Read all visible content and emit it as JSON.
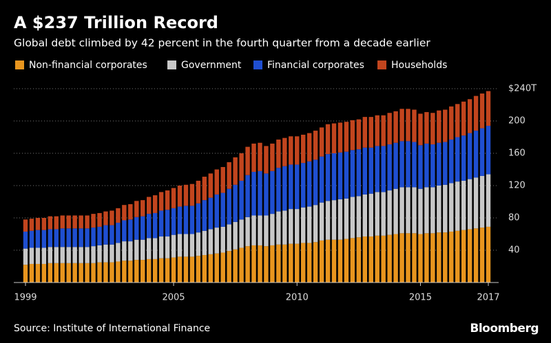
{
  "chart_data": {
    "type": "stacked-bar",
    "title": "A $237 Trillion Record",
    "subtitle": "Global debt climbed by 42 percent in the fourth quarter from a decade earlier",
    "source": "Source: Institute of International Finance",
    "brand": "Bloomberg",
    "categories": [
      "1999",
      null,
      null,
      null,
      null,
      null,
      null,
      null,
      null,
      null,
      null,
      null,
      null,
      null,
      null,
      null,
      null,
      null,
      null,
      null,
      null,
      null,
      null,
      null,
      "2005",
      null,
      null,
      null,
      null,
      null,
      null,
      null,
      null,
      null,
      null,
      null,
      null,
      null,
      null,
      null,
      null,
      null,
      null,
      null,
      "2010",
      null,
      null,
      null,
      null,
      null,
      null,
      null,
      null,
      null,
      null,
      null,
      null,
      null,
      null,
      null,
      null,
      null,
      null,
      null,
      "2015",
      null,
      null,
      null,
      null,
      null,
      null,
      null,
      null,
      null,
      null,
      "2017"
    ],
    "series": [
      {
        "name": "Non-financial corporates",
        "color": "#e8951e",
        "values": [
          22,
          23,
          23,
          23,
          24,
          24,
          24,
          24,
          24,
          24,
          24,
          24,
          25,
          25,
          25,
          26,
          27,
          27,
          28,
          28,
          29,
          29,
          30,
          30,
          31,
          32,
          32,
          32,
          33,
          34,
          35,
          36,
          37,
          39,
          41,
          43,
          45,
          46,
          46,
          45,
          46,
          47,
          47,
          48,
          48,
          49,
          49,
          50,
          52,
          53,
          53,
          53,
          54,
          55,
          56,
          57,
          57,
          58,
          58,
          59,
          60,
          61,
          61,
          61,
          60,
          61,
          61,
          62,
          62,
          63,
          64,
          65,
          66,
          67,
          68,
          69
        ]
      },
      {
        "name": "Government",
        "color": "#c8c8c8",
        "values": [
          20,
          20,
          20,
          20,
          20,
          20,
          20,
          20,
          20,
          20,
          20,
          21,
          21,
          22,
          22,
          23,
          24,
          24,
          25,
          25,
          26,
          26,
          27,
          27,
          28,
          28,
          28,
          28,
          29,
          30,
          31,
          32,
          32,
          33,
          34,
          35,
          36,
          37,
          37,
          38,
          39,
          41,
          42,
          43,
          43,
          44,
          45,
          46,
          47,
          48,
          49,
          50,
          50,
          51,
          51,
          52,
          53,
          54,
          54,
          55,
          56,
          57,
          57,
          57,
          56,
          57,
          57,
          58,
          59,
          60,
          61,
          61,
          62,
          63,
          64,
          65
        ]
      },
      {
        "name": "Financial corporates",
        "color": "#1f4fd1",
        "values": [
          21,
          21,
          22,
          22,
          22,
          22,
          23,
          23,
          23,
          23,
          23,
          23,
          23,
          24,
          24,
          25,
          26,
          27,
          28,
          29,
          30,
          31,
          32,
          33,
          33,
          34,
          35,
          35,
          36,
          38,
          39,
          41,
          42,
          44,
          46,
          48,
          52,
          54,
          55,
          52,
          53,
          54,
          55,
          55,
          55,
          55,
          56,
          56,
          57,
          58,
          58,
          58,
          58,
          58,
          58,
          58,
          57,
          57,
          57,
          57,
          57,
          57,
          57,
          56,
          54,
          54,
          53,
          53,
          53,
          54,
          55,
          56,
          57,
          58,
          59,
          60
        ]
      },
      {
        "name": "Households",
        "color": "#c2451e",
        "values": [
          15,
          15,
          15,
          15,
          16,
          16,
          16,
          16,
          16,
          16,
          16,
          17,
          17,
          17,
          18,
          18,
          19,
          19,
          20,
          20,
          21,
          22,
          23,
          24,
          25,
          26,
          26,
          27,
          28,
          29,
          30,
          31,
          32,
          33,
          34,
          34,
          35,
          35,
          35,
          34,
          34,
          35,
          35,
          35,
          35,
          35,
          35,
          36,
          36,
          37,
          37,
          37,
          37,
          37,
          37,
          38,
          38,
          38,
          38,
          39,
          39,
          40,
          40,
          40,
          39,
          39,
          39,
          40,
          40,
          41,
          41,
          42,
          42,
          43,
          43,
          43
        ]
      }
    ],
    "ylim": [
      0,
      240
    ],
    "yticks": [
      40,
      80,
      120,
      160,
      200,
      {
        "value": 240,
        "label": "$240T"
      }
    ],
    "grid": true
  }
}
